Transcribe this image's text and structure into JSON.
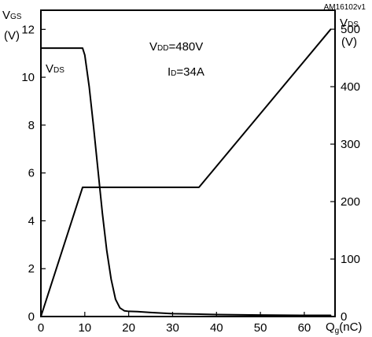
{
  "chart_data": {
    "type": "line",
    "code": "AM16102v1",
    "left_axis": {
      "label_main": "V",
      "label_sub": "GS",
      "unit": "(V)",
      "ylim": [
        0,
        12.8
      ],
      "ticks": [
        0,
        2,
        4,
        6,
        8,
        10,
        12
      ]
    },
    "right_axis": {
      "label_main": "V",
      "label_sub": "DS",
      "unit": "(V)",
      "ylim": [
        0,
        533
      ],
      "ticks": [
        0,
        100,
        200,
        300,
        400,
        500
      ]
    },
    "x_axis": {
      "label_main": "Q",
      "label_sub": "g",
      "unit": "(nC)",
      "xlim": [
        0,
        67
      ],
      "ticks": [
        0,
        10,
        20,
        30,
        40,
        50,
        60
      ]
    },
    "conditions": {
      "vdd_main": "V",
      "vdd_sub": "DD",
      "vdd_value": "=480V",
      "id_main": "I",
      "id_sub": "D",
      "id_value": "=34A"
    },
    "series": [
      {
        "name": "V",
        "name_sub": "GS",
        "axis": "left",
        "x": [
          0,
          9.5,
          36,
          66
        ],
        "y": [
          0,
          5.4,
          5.4,
          12
        ]
      },
      {
        "name": "V",
        "name_sub": "DS",
        "axis": "right",
        "x": [
          0,
          9,
          9.5,
          10,
          11,
          12,
          13,
          14,
          15,
          16,
          17,
          18,
          19,
          20,
          22,
          25,
          30,
          40,
          50,
          60,
          66
        ],
        "y": [
          467,
          467,
          467,
          455,
          400,
          330,
          255,
          180,
          115,
          65,
          30,
          15,
          10,
          9,
          8.5,
          7,
          5,
          3.5,
          2.5,
          2,
          2
        ]
      }
    ]
  }
}
